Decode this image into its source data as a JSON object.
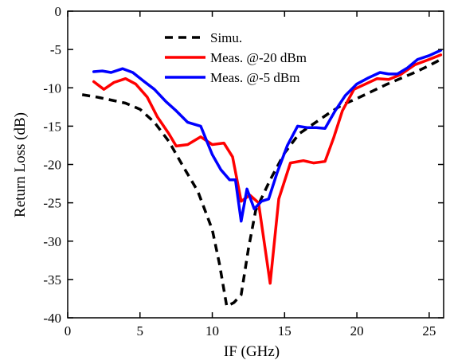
{
  "chart_data": {
    "type": "line",
    "xlabel": "IF (GHz)",
    "ylabel": "Return Loss (dB)",
    "xlim": [
      0,
      26
    ],
    "ylim": [
      -40,
      0
    ],
    "xticks": [
      0,
      5,
      10,
      15,
      20,
      25
    ],
    "yticks": [
      0,
      -5,
      -10,
      -15,
      -20,
      -25,
      -30,
      -35,
      -40
    ],
    "grid": false,
    "legend_position": "top-center",
    "series": [
      {
        "name": "Simu.",
        "color": "#000000",
        "style": "dashed",
        "x": [
          1,
          2,
          3,
          4,
          5,
          6,
          7,
          8,
          9,
          10,
          10.5,
          11,
          11.5,
          12,
          12.5,
          13,
          14,
          15,
          16,
          17,
          18,
          19,
          20,
          21,
          22,
          23,
          24,
          25,
          25.7
        ],
        "y": [
          -10.9,
          -11.2,
          -11.6,
          -12,
          -12.8,
          -14.5,
          -17,
          -20.3,
          -23.5,
          -28.5,
          -33,
          -38.5,
          -38,
          -37,
          -31,
          -26,
          -22,
          -18.5,
          -16,
          -14.7,
          -13.4,
          -12.2,
          -11.4,
          -10.5,
          -9.6,
          -8.8,
          -8,
          -7.1,
          -6.4
        ]
      },
      {
        "name": "Meas. @-20 dBm",
        "color": "#ff0000",
        "style": "solid",
        "x": [
          1.8,
          2.5,
          3.2,
          4,
          4.7,
          5.5,
          6.2,
          7,
          7.5,
          8.3,
          9.2,
          10,
          10.8,
          11.4,
          12,
          12.6,
          13.2,
          14,
          14.6,
          15.4,
          16.3,
          17,
          17.8,
          18.4,
          19,
          19.8,
          20.6,
          21.4,
          22.2,
          23,
          24,
          25,
          25.8
        ],
        "y": [
          -9.2,
          -10.2,
          -9.3,
          -8.8,
          -9.5,
          -11.2,
          -13.8,
          -16,
          -17.6,
          -17.4,
          -16.4,
          -17.4,
          -17.2,
          -19,
          -24.8,
          -24,
          -25,
          -35.5,
          -24.5,
          -19.8,
          -19.5,
          -19.8,
          -19.6,
          -16.5,
          -13,
          -10.2,
          -9.5,
          -8.8,
          -8.9,
          -8.3,
          -7,
          -6.3,
          -5.7
        ]
      },
      {
        "name": "Meas. @-5 dBm",
        "color": "#0000ff",
        "style": "solid",
        "x": [
          1.8,
          2.4,
          3,
          3.8,
          4.5,
          5.3,
          6,
          6.8,
          7.5,
          8.3,
          9.2,
          10,
          10.6,
          11.2,
          11.6,
          12,
          12.4,
          12.9,
          13.4,
          13.9,
          14.5,
          15.2,
          15.9,
          16.6,
          17.2,
          17.8,
          18.5,
          19.2,
          20,
          20.8,
          21.6,
          22.2,
          22.8,
          23.5,
          24.2,
          25,
          25.8
        ],
        "y": [
          -7.9,
          -7.8,
          -8,
          -7.5,
          -8,
          -9.2,
          -10.2,
          -11.8,
          -13,
          -14.5,
          -15,
          -18.7,
          -20.7,
          -22,
          -22,
          -27.4,
          -23.2,
          -25.8,
          -24.8,
          -24.5,
          -21,
          -17.5,
          -15,
          -15.2,
          -15.2,
          -15.3,
          -13,
          -11,
          -9.5,
          -8.7,
          -8,
          -8.2,
          -8.2,
          -7.4,
          -6.3,
          -5.8,
          -5.1
        ]
      }
    ]
  }
}
